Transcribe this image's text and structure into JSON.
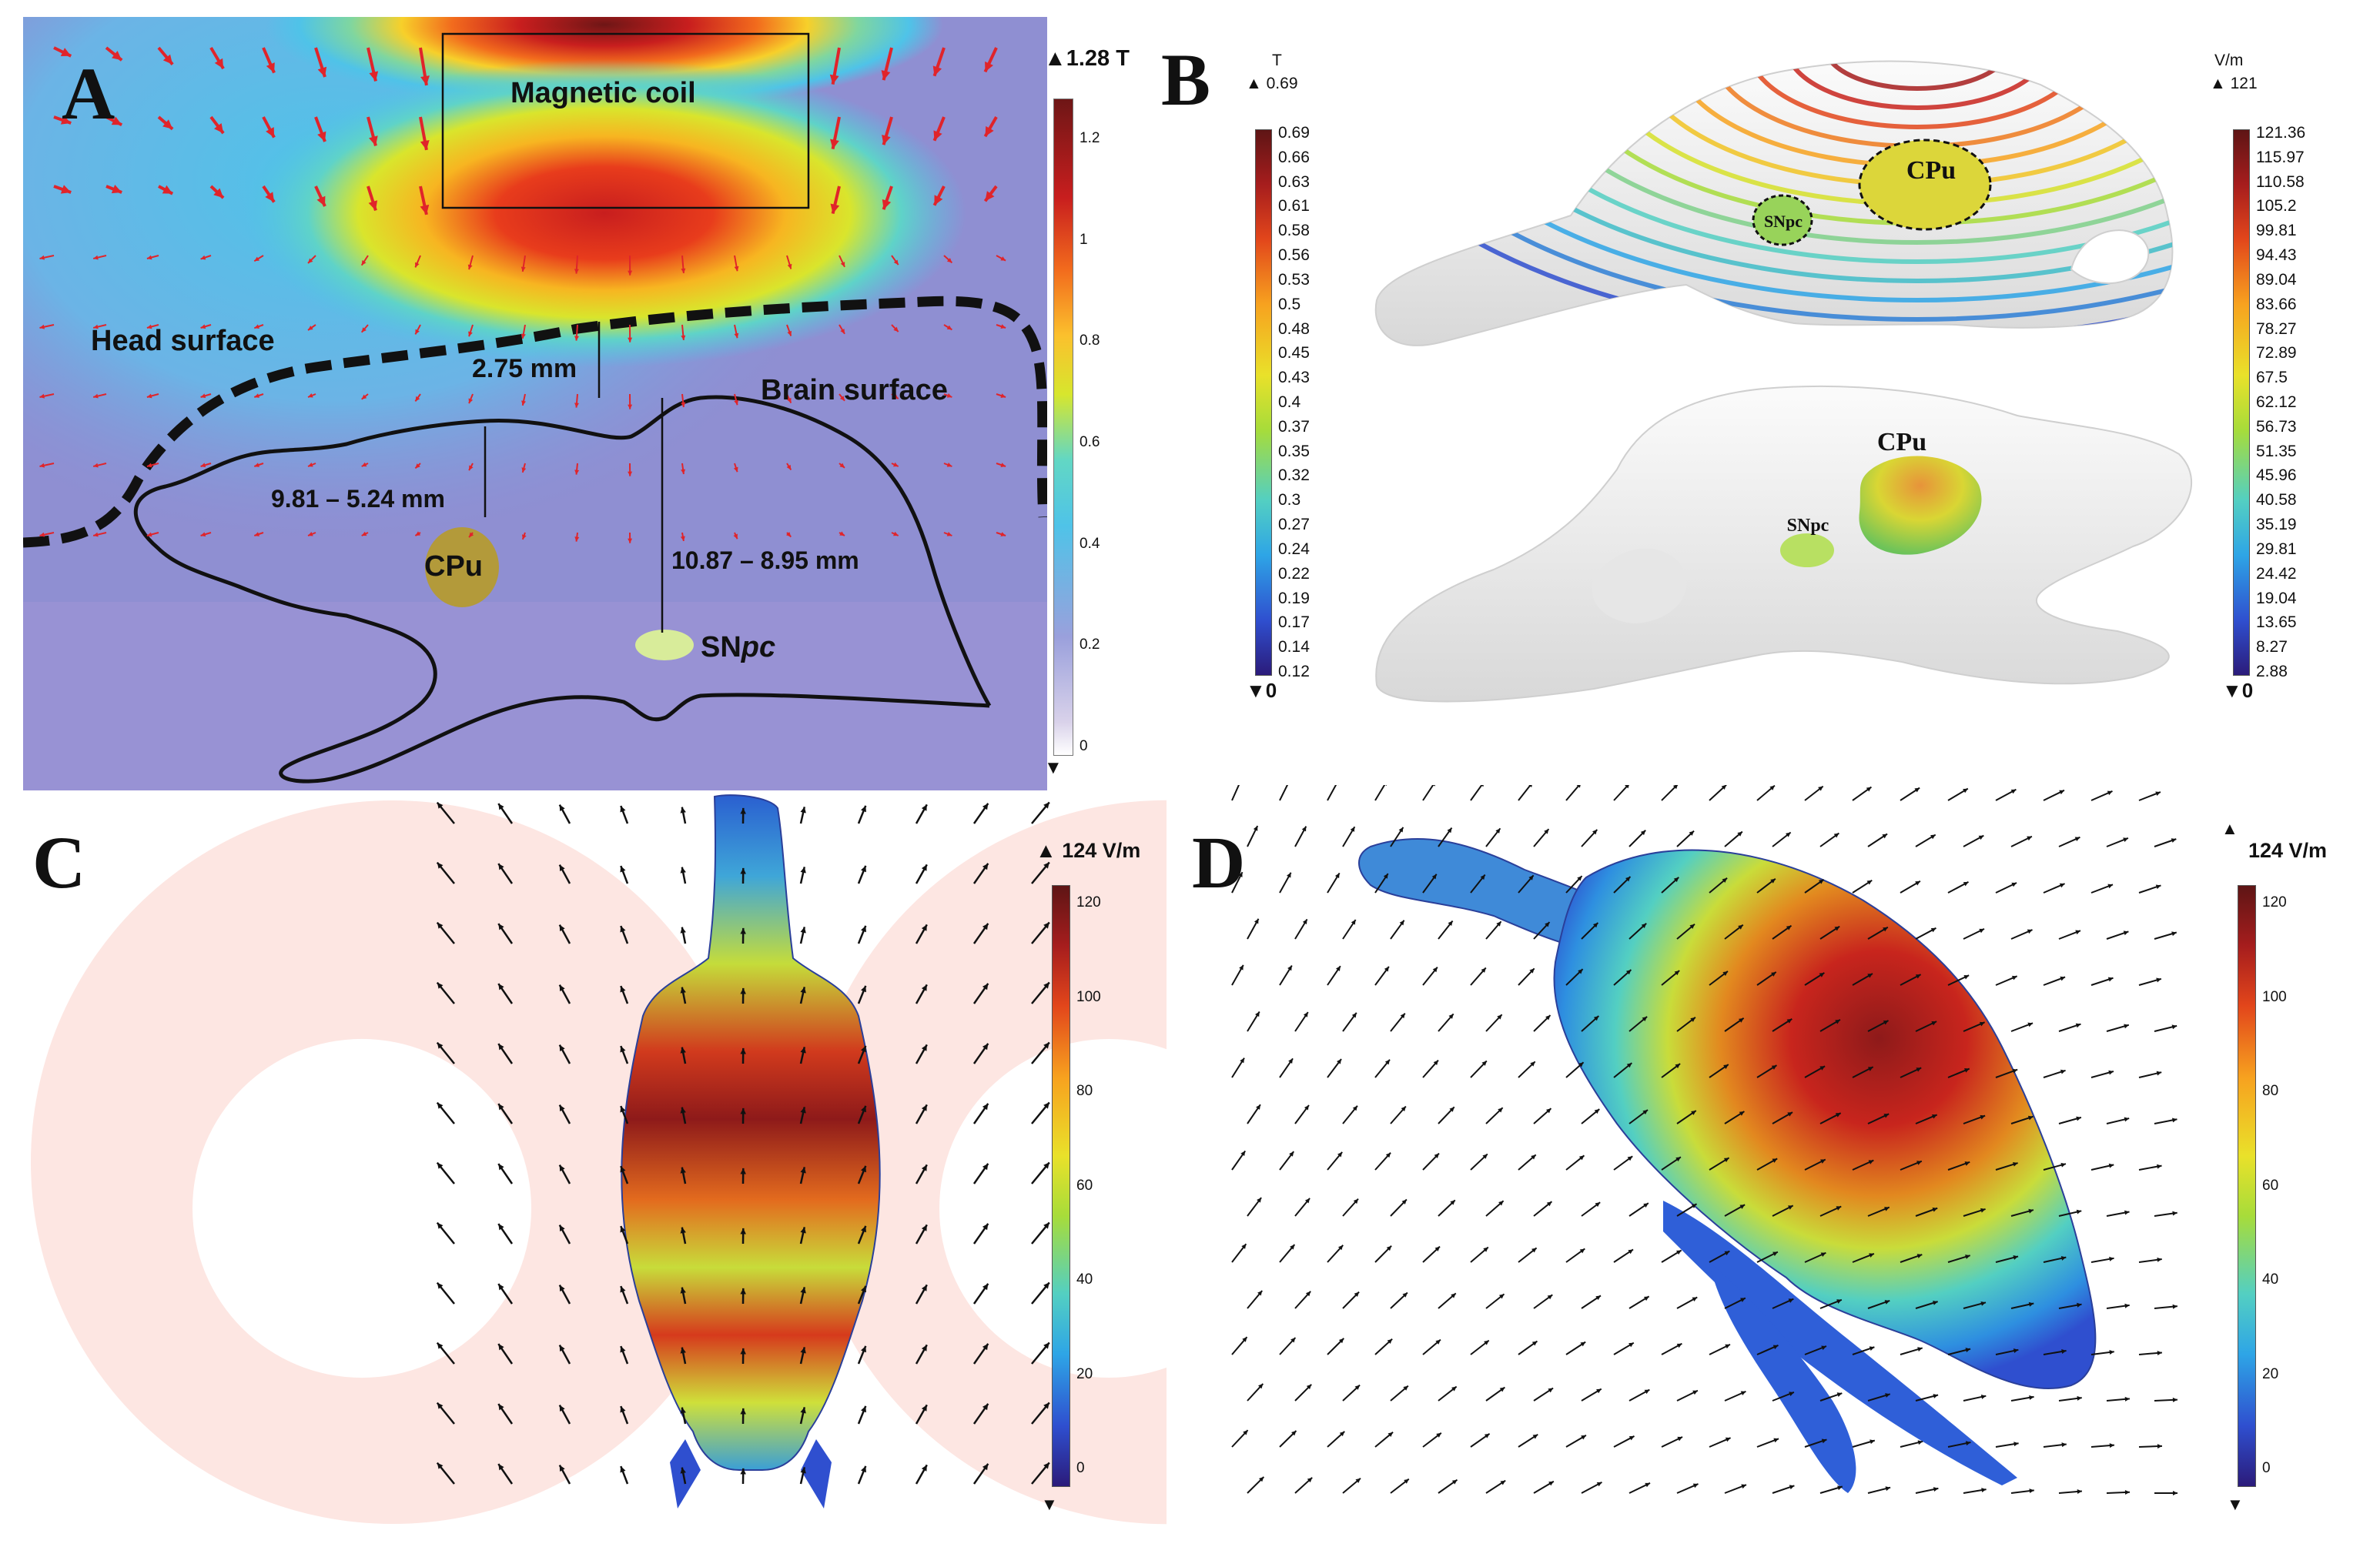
{
  "panels": {
    "A": {
      "letter": "A",
      "colorbar_max": "1.28 T",
      "colorbar_ticks": [
        "1.2",
        "1",
        "0.8",
        "0.6",
        "0.4",
        "0.2",
        "0"
      ],
      "labels": {
        "coil": "Magnetic coil",
        "head": "Head surface",
        "brain": "Brain surface",
        "d_coil": "2.75 mm",
        "d_cpu": "9.81 – 5.24 mm",
        "d_snpc": "10.87 – 8.95 mm",
        "cpu": "CPu",
        "snpc_prefix": "SN",
        "snpc_suffix": "pc"
      }
    },
    "B": {
      "letter": "B",
      "left_unit": "T",
      "left_max": "0.69",
      "left_min": "0",
      "left_ticks": [
        "0.69",
        "0.66",
        "0.63",
        "0.61",
        "0.58",
        "0.56",
        "0.53",
        "0.5",
        "0.48",
        "0.45",
        "0.43",
        "0.4",
        "0.37",
        "0.35",
        "0.32",
        "0.3",
        "0.27",
        "0.24",
        "0.22",
        "0.19",
        "0.17",
        "0.14",
        "0.12"
      ],
      "right_unit": "V/m",
      "right_max": "121",
      "right_min": "0",
      "right_ticks": [
        "121.36",
        "115.97",
        "110.58",
        "105.2",
        "99.81",
        "94.43",
        "89.04",
        "83.66",
        "78.27",
        "72.89",
        "67.5",
        "62.12",
        "56.73",
        "51.35",
        "45.96",
        "40.58",
        "35.19",
        "29.81",
        "24.42",
        "19.04",
        "13.65",
        "8.27",
        "2.88"
      ],
      "labels": {
        "cpu_top": "CPu",
        "snpc_top": "SNpc",
        "cpu_bottom": "CPu",
        "snpc_bottom": "SNpc"
      }
    },
    "C": {
      "letter": "C",
      "colorbar_max": "124 V/m",
      "colorbar_ticks": [
        "120",
        "100",
        "80",
        "60",
        "40",
        "20",
        "0"
      ]
    },
    "D": {
      "letter": "D",
      "colorbar_max": "124 V/m",
      "colorbar_ticks": [
        "120",
        "100",
        "80",
        "60",
        "40",
        "20",
        "0"
      ]
    }
  },
  "colors": {
    "field_red": "#c81e1e",
    "arrow_red": "#e0242a",
    "arrow_black": "#111111",
    "cpu_fill": "#b39a3a",
    "snpc_fill": "#d8ec9a",
    "coil_ring": "#fde6e2"
  }
}
